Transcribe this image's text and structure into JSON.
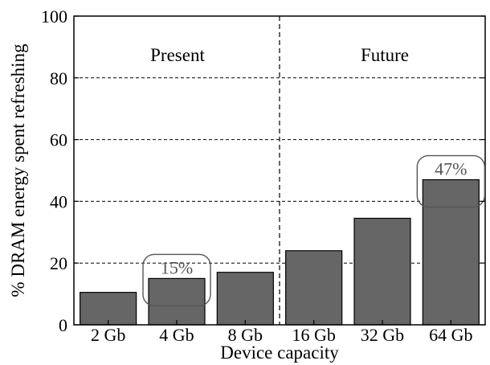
{
  "chart_data": {
    "type": "bar",
    "xlabel": "Device capacity",
    "ylabel": "% DRAM energy spent refreshing",
    "ylim": [
      0,
      100
    ],
    "yticks": [
      "0",
      "20",
      "40",
      "60",
      "80",
      "100"
    ],
    "categories": [
      "2 Gb",
      "4 Gb",
      "8 Gb",
      "16 Gb",
      "32 Gb",
      "64 Gb"
    ],
    "values": [
      10.5,
      15,
      17,
      24,
      34.5,
      47
    ],
    "grid": true,
    "regions": [
      {
        "label": "Present",
        "categories": [
          "2 Gb",
          "4 Gb",
          "8 Gb"
        ]
      },
      {
        "label": "Future",
        "categories": [
          "16 Gb",
          "32 Gb",
          "64 Gb"
        ]
      }
    ],
    "annotations": [
      {
        "category": "4 Gb",
        "text": "15%"
      },
      {
        "category": "64 Gb",
        "text": "47%"
      }
    ],
    "colors": {
      "bar": "#666666",
      "grid": "#000000",
      "callout_text": "#555555"
    }
  }
}
